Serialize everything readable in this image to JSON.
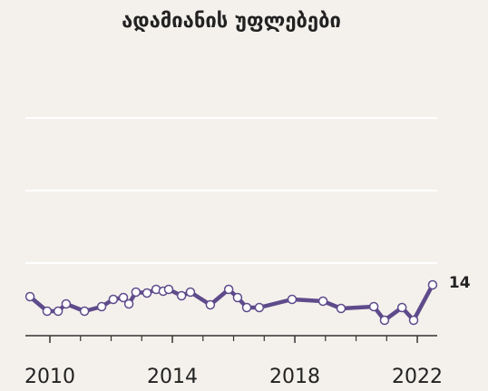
{
  "chart_data": {
    "type": "line",
    "title": "ადამიანის უფლებები",
    "x": [
      2009.35,
      2009.91,
      2010.27,
      2010.53,
      2011.13,
      2011.69,
      2012.07,
      2012.4,
      2012.58,
      2012.81,
      2013.17,
      2013.47,
      2013.7,
      2013.88,
      2014.3,
      2014.59,
      2015.24,
      2015.84,
      2016.13,
      2016.43,
      2016.84,
      2017.91,
      2018.92,
      2019.51,
      2020.58,
      2020.93,
      2021.5,
      2021.88,
      2022.5
    ],
    "series": [
      {
        "color": "#5e4b8b",
        "values": [
          10.75,
          6.75,
          6.75,
          8.75,
          6.75,
          8,
          10,
          10.5,
          8.75,
          12,
          11.75,
          12.75,
          12.25,
          12.75,
          11,
          12,
          8.5,
          12.75,
          10.5,
          7.75,
          7.75,
          10,
          9.5,
          7.5,
          8,
          4.25,
          7.75,
          4.25,
          14
        ]
      }
    ],
    "xlim": [
      2009.2,
      2022.65
    ],
    "xticks": [
      2010,
      2014,
      2018,
      2022
    ],
    "xminorticks": [
      2011,
      2012,
      2013,
      2015,
      2016,
      2017,
      2019,
      2020,
      2021
    ],
    "ylim": [
      0,
      70
    ],
    "yticks": [
      0,
      20,
      40,
      60
    ],
    "grid": true
  }
}
